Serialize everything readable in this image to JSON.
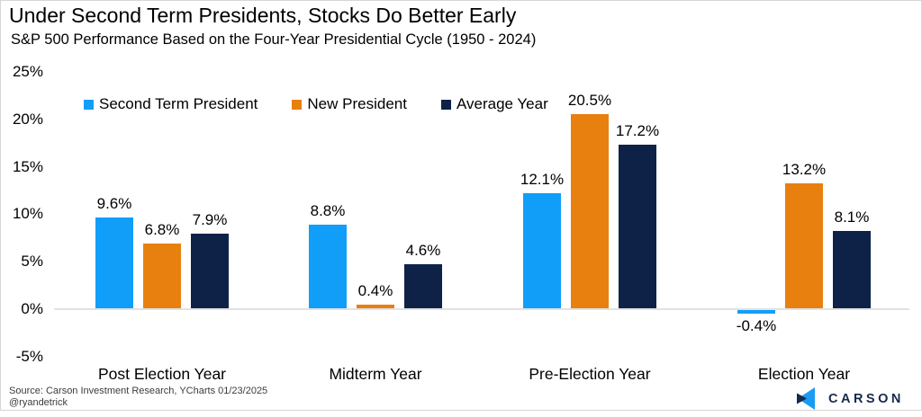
{
  "header": {
    "title": "Under Second Term Presidents, Stocks Do Better Early",
    "subtitle": "S&P 500 Performance Based on the Four-Year Presidential Cycle (1950 - 2024)"
  },
  "colors": {
    "second_term_blue": "#119EF9",
    "new_president_orange": "#E8800F",
    "average_year_navy": "#0E2248",
    "gridline_gray": "#E2E2E2",
    "logo_navy": "#16294E",
    "logo_blue": "#1B9BF4"
  },
  "chart_data": {
    "type": "bar",
    "title": "Under Second Term Presidents, Stocks Do Better Early",
    "subtitle": "S&P 500 Performance Based on the Four-Year Presidential Cycle (1950 - 2024)",
    "categories": [
      "Post Election Year",
      "Midterm Year",
      "Pre-Election Year",
      "Election Year"
    ],
    "series": [
      {
        "name": "Second Term President",
        "color": "#119EF9",
        "values": [
          9.6,
          8.8,
          12.1,
          -0.4
        ],
        "labels": [
          "9.6%",
          "8.8%",
          "12.1%",
          "-0.4%"
        ]
      },
      {
        "name": "New President",
        "color": "#E8800F",
        "values": [
          6.8,
          0.4,
          20.5,
          13.2
        ],
        "labels": [
          "6.8%",
          "0.4%",
          "20.5%",
          "13.2%"
        ]
      },
      {
        "name": "Average Year",
        "color": "#0E2248",
        "values": [
          7.9,
          4.6,
          17.2,
          8.1
        ],
        "labels": [
          "7.9%",
          "4.6%",
          "17.2%",
          "8.1%"
        ]
      }
    ],
    "ylim": [
      -5,
      25
    ],
    "yticks": [
      "25%",
      "20%",
      "15%",
      "10%",
      "5%",
      "0%",
      "-5%"
    ],
    "xlabel": "",
    "ylabel": "",
    "grid": "zero-line-only",
    "legend_position": "top-left"
  },
  "footer": {
    "source_line1": "Source: Carson Investment Research, YCharts 01/23/2025",
    "source_line2": "@ryandetrick",
    "logo_text": "CARSON"
  }
}
